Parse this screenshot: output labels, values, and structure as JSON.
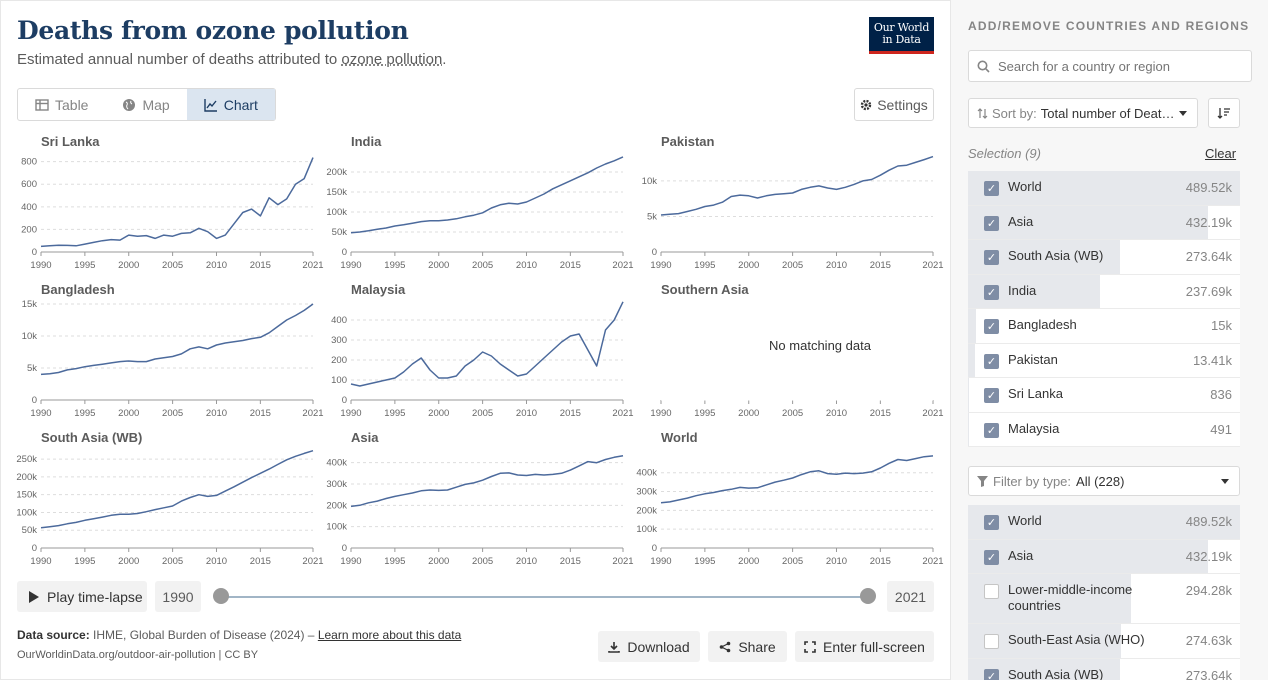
{
  "header": {
    "title": "Deaths from ozone pollution",
    "subtitle_pre": "Estimated annual number of deaths attributed to ",
    "subtitle_link": "ozone pollution",
    "subtitle_post": ".",
    "logo_line1": "Our World",
    "logo_line2": "in Data"
  },
  "tabs": [
    {
      "label": "Table",
      "icon": "table-icon"
    },
    {
      "label": "Map",
      "icon": "globe-icon"
    },
    {
      "label": "Chart",
      "icon": "line-chart-icon",
      "active": true
    }
  ],
  "settings_label": "Settings",
  "colors": {
    "line": "#4c6a9c",
    "grid": "#dddddd",
    "accent_bg": "#dbe5f0",
    "brand": "#002147",
    "brand_red": "#ce261e"
  },
  "chart_data": [
    {
      "type": "line",
      "title": "Sri Lanka",
      "x": [
        1990,
        1991,
        1992,
        1993,
        1994,
        1995,
        1996,
        1997,
        1998,
        1999,
        2000,
        2001,
        2002,
        2003,
        2004,
        2005,
        2006,
        2007,
        2008,
        2009,
        2010,
        2011,
        2012,
        2013,
        2014,
        2015,
        2016,
        2017,
        2018,
        2019,
        2020,
        2021
      ],
      "values": [
        50,
        55,
        60,
        58,
        55,
        70,
        85,
        100,
        110,
        105,
        150,
        140,
        145,
        120,
        150,
        140,
        165,
        170,
        210,
        180,
        120,
        150,
        250,
        350,
        380,
        320,
        480,
        420,
        470,
        600,
        650,
        836
      ],
      "ylim": [
        0,
        850
      ],
      "yticks": [
        0,
        200,
        400,
        600,
        800
      ],
      "ytick_labels": [
        "0",
        "200",
        "400",
        "600",
        "800"
      ]
    },
    {
      "type": "line",
      "title": "India",
      "x": [
        1990,
        1991,
        1992,
        1993,
        1994,
        1995,
        1996,
        1997,
        1998,
        1999,
        2000,
        2001,
        2002,
        2003,
        2004,
        2005,
        2006,
        2007,
        2008,
        2009,
        2010,
        2011,
        2012,
        2013,
        2014,
        2015,
        2016,
        2017,
        2018,
        2019,
        2020,
        2021
      ],
      "values": [
        48000,
        50000,
        53000,
        57000,
        60000,
        65000,
        68000,
        72000,
        76000,
        78000,
        78000,
        80000,
        83000,
        88000,
        92000,
        98000,
        110000,
        118000,
        122000,
        120000,
        125000,
        135000,
        145000,
        158000,
        168000,
        178000,
        188000,
        198000,
        210000,
        220000,
        228000,
        237690
      ],
      "ylim": [
        0,
        240000
      ],
      "yticks": [
        0,
        50000,
        100000,
        150000,
        200000
      ],
      "ytick_labels": [
        "0",
        "50k",
        "100k",
        "150k",
        "200k"
      ]
    },
    {
      "type": "line",
      "title": "Pakistan",
      "x": [
        1990,
        1991,
        1992,
        1993,
        1994,
        1995,
        1996,
        1997,
        1998,
        1999,
        2000,
        2001,
        2002,
        2003,
        2004,
        2005,
        2006,
        2007,
        2008,
        2009,
        2010,
        2011,
        2012,
        2013,
        2014,
        2015,
        2016,
        2017,
        2018,
        2019,
        2020,
        2021
      ],
      "values": [
        5200,
        5300,
        5400,
        5700,
        6000,
        6400,
        6600,
        7000,
        7800,
        8000,
        7900,
        7600,
        7900,
        8100,
        8200,
        8300,
        8800,
        9100,
        9300,
        9000,
        8800,
        9100,
        9500,
        10000,
        10200,
        10800,
        11500,
        12100,
        12200,
        12600,
        13000,
        13410
      ],
      "ylim": [
        0,
        13500
      ],
      "yticks": [
        0,
        5000,
        10000
      ],
      "ytick_labels": [
        "0",
        "5k",
        "10k"
      ]
    },
    {
      "type": "line",
      "title": "Bangladesh",
      "x": [
        1990,
        1991,
        1992,
        1993,
        1994,
        1995,
        1996,
        1997,
        1998,
        1999,
        2000,
        2001,
        2002,
        2003,
        2004,
        2005,
        2006,
        2007,
        2008,
        2009,
        2010,
        2011,
        2012,
        2013,
        2014,
        2015,
        2016,
        2017,
        2018,
        2019,
        2020,
        2021
      ],
      "values": [
        4000,
        4100,
        4300,
        4700,
        4900,
        5200,
        5400,
        5600,
        5800,
        6000,
        6100,
        6000,
        6000,
        6400,
        6600,
        6800,
        7200,
        8000,
        8300,
        8000,
        8600,
        8900,
        9100,
        9300,
        9600,
        9800,
        10500,
        11500,
        12500,
        13200,
        14000,
        15000
      ],
      "ylim": [
        0,
        15000
      ],
      "yticks": [
        0,
        5000,
        10000,
        15000
      ],
      "ytick_labels": [
        "0",
        "5k",
        "10k",
        "15k"
      ]
    },
    {
      "type": "line",
      "title": "Malaysia",
      "x": [
        1990,
        1991,
        1992,
        1993,
        1994,
        1995,
        1996,
        1997,
        1998,
        1999,
        2000,
        2001,
        2002,
        2003,
        2004,
        2005,
        2006,
        2007,
        2008,
        2009,
        2010,
        2011,
        2012,
        2013,
        2014,
        2015,
        2016,
        2017,
        2018,
        2019,
        2020,
        2021
      ],
      "values": [
        80,
        70,
        80,
        90,
        100,
        110,
        140,
        180,
        210,
        150,
        110,
        110,
        120,
        170,
        200,
        240,
        220,
        180,
        150,
        120,
        130,
        170,
        210,
        250,
        290,
        320,
        330,
        250,
        170,
        350,
        400,
        491
      ],
      "ylim": [
        0,
        480
      ],
      "yticks": [
        0,
        100,
        200,
        300,
        400
      ],
      "ytick_labels": [
        "0",
        "100",
        "200",
        "300",
        "400"
      ]
    },
    {
      "type": "line",
      "title": "Southern Asia",
      "x": [],
      "values": [],
      "no_data": "No matching data"
    },
    {
      "type": "line",
      "title": "South Asia (WB)",
      "x": [
        1990,
        1991,
        1992,
        1993,
        1994,
        1995,
        1996,
        1997,
        1998,
        1999,
        2000,
        2001,
        2002,
        2003,
        2004,
        2005,
        2006,
        2007,
        2008,
        2009,
        2010,
        2011,
        2012,
        2013,
        2014,
        2015,
        2016,
        2017,
        2018,
        2019,
        2020,
        2021
      ],
      "values": [
        57000,
        60000,
        63000,
        68000,
        72000,
        78000,
        82000,
        87000,
        92000,
        95000,
        95000,
        97000,
        102000,
        108000,
        113000,
        118000,
        132000,
        142000,
        150000,
        145000,
        148000,
        160000,
        172000,
        185000,
        198000,
        210000,
        222000,
        235000,
        248000,
        258000,
        266000,
        273640
      ],
      "ylim": [
        0,
        270000
      ],
      "yticks": [
        0,
        50000,
        100000,
        150000,
        200000,
        250000
      ],
      "ytick_labels": [
        "0",
        "50k",
        "100k",
        "150k",
        "200k",
        "250k"
      ]
    },
    {
      "type": "line",
      "title": "Asia",
      "x": [
        1990,
        1991,
        1992,
        1993,
        1994,
        1995,
        1996,
        1997,
        1998,
        1999,
        2000,
        2001,
        2002,
        2003,
        2004,
        2005,
        2006,
        2007,
        2008,
        2009,
        2010,
        2011,
        2012,
        2013,
        2014,
        2015,
        2016,
        2017,
        2018,
        2019,
        2020,
        2021
      ],
      "values": [
        195000,
        200000,
        212000,
        220000,
        232000,
        242000,
        250000,
        258000,
        268000,
        272000,
        270000,
        272000,
        285000,
        298000,
        305000,
        318000,
        335000,
        350000,
        352000,
        342000,
        340000,
        345000,
        342000,
        345000,
        350000,
        365000,
        385000,
        405000,
        400000,
        415000,
        425000,
        432190
      ],
      "ylim": [
        0,
        450000
      ],
      "yticks": [
        0,
        100000,
        200000,
        300000,
        400000
      ],
      "ytick_labels": [
        "0",
        "100k",
        "200k",
        "300k",
        "400k"
      ]
    },
    {
      "type": "line",
      "title": "World",
      "x": [
        1990,
        1991,
        1992,
        1993,
        1994,
        1995,
        1996,
        1997,
        1998,
        1999,
        2000,
        2001,
        2002,
        2003,
        2004,
        2005,
        2006,
        2007,
        2008,
        2009,
        2010,
        2011,
        2012,
        2013,
        2014,
        2015,
        2016,
        2017,
        2018,
        2019,
        2020,
        2021
      ],
      "values": [
        240000,
        245000,
        255000,
        265000,
        278000,
        288000,
        295000,
        305000,
        312000,
        322000,
        318000,
        320000,
        335000,
        350000,
        360000,
        372000,
        390000,
        405000,
        410000,
        395000,
        392000,
        398000,
        395000,
        398000,
        405000,
        425000,
        450000,
        470000,
        465000,
        475000,
        485000,
        489520
      ],
      "ylim": [
        0,
        510000
      ],
      "yticks": [
        0,
        100000,
        200000,
        300000,
        400000
      ],
      "ytick_labels": [
        "0",
        "100k",
        "200k",
        "300k",
        "400k"
      ]
    }
  ],
  "x_ticks": [
    "1990",
    "1995",
    "2000",
    "2005",
    "2010",
    "2015",
    "2021"
  ],
  "timeline": {
    "play_label": "Play time-lapse",
    "start": "1990",
    "end": "2021"
  },
  "footer": {
    "source_label": "Data source:",
    "source_text": " IHME, Global Burden of Disease (2024) – ",
    "learn_more": "Learn more about this data",
    "url": "OurWorldinData.org/outdoor-air-pollution | CC BY",
    "download": "Download",
    "share": "Share",
    "fullscreen": "Enter full-screen"
  },
  "sidebar": {
    "heading": "ADD/REMOVE COUNTRIES AND REGIONS",
    "search_placeholder": "Search for a country or region",
    "sort_label": "Sort by:",
    "sort_value": "Total number of Deat…",
    "selection_label": "Selection (9)",
    "clear_label": "Clear",
    "selected": [
      {
        "name": "World",
        "value": "489.52k",
        "share": 1.0
      },
      {
        "name": "Asia",
        "value": "432.19k",
        "share": 0.883
      },
      {
        "name": "South Asia (WB)",
        "value": "273.64k",
        "share": 0.559
      },
      {
        "name": "India",
        "value": "237.69k",
        "share": 0.486
      },
      {
        "name": "Bangladesh",
        "value": "15k",
        "share": 0.03
      },
      {
        "name": "Pakistan",
        "value": "13.41k",
        "share": 0.027
      },
      {
        "name": "Sri Lanka",
        "value": "836",
        "share": 0.002
      },
      {
        "name": "Malaysia",
        "value": "491",
        "share": 0.001
      }
    ],
    "filter_label": "Filter by type:",
    "filter_value": "All (228)",
    "all": [
      {
        "name": "World",
        "value": "489.52k",
        "checked": true,
        "share": 1.0
      },
      {
        "name": "Asia",
        "value": "432.19k",
        "checked": true,
        "share": 0.883
      },
      {
        "name": "Lower-middle-income countries",
        "value": "294.28k",
        "checked": false,
        "share": 0.601
      },
      {
        "name": "South-East Asia (WHO)",
        "value": "274.63k",
        "checked": false,
        "share": 0.561
      },
      {
        "name": "South Asia (WB)",
        "value": "273.64k",
        "checked": true,
        "share": 0.559
      }
    ]
  }
}
